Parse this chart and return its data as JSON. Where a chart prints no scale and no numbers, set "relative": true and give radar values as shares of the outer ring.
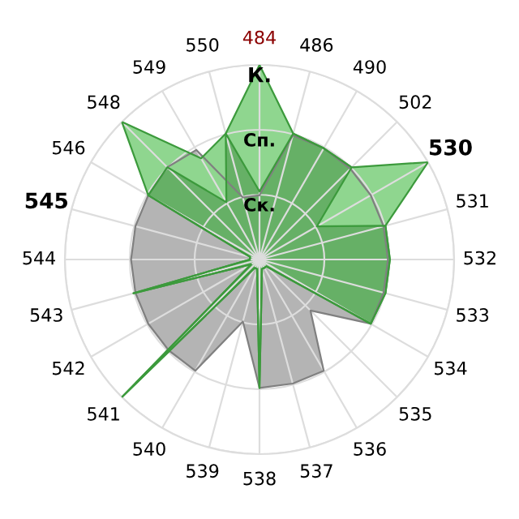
{
  "chart_data": {
    "type": "radar",
    "relative": true,
    "grid": true,
    "categories": [
      "484",
      "486",
      "490",
      "502",
      "530",
      "531",
      "532",
      "533",
      "534",
      "535",
      "536",
      "537",
      "538",
      "539",
      "540",
      "541",
      "542",
      "543",
      "544",
      "545",
      "546",
      "548",
      "549",
      "550"
    ],
    "annotations": [
      "Ск.",
      "Сп.",
      "К."
    ],
    "series": [
      {
        "color": "#b4b4b4",
        "values": [
          0.33,
          0.66,
          0.66,
          0.66,
          0.66,
          0.66,
          0.66,
          0.66,
          0.66,
          0.37,
          0.66,
          0.66,
          0.66,
          0.33,
          0.66,
          0.66,
          0.66,
          0.66,
          0.66,
          0.66,
          0.66,
          0.67,
          0.65,
          0.33
        ]
      },
      {
        "color": "#8fd68f",
        "values": [
          1.0,
          0.67,
          0.66,
          0.67,
          1.0,
          0.67,
          0.67,
          0.67,
          0.66,
          0.05,
          0.05,
          0.05,
          0.66,
          0.05,
          0.05,
          1.0,
          0.05,
          0.67,
          0.05,
          0.05,
          0.66,
          1.0,
          0.6,
          0.67
        ]
      },
      {
        "color": "#66b066",
        "values": [
          0.35,
          0.67,
          0.66,
          0.67,
          0.34,
          0.67,
          0.67,
          0.67,
          0.66,
          0.05,
          0.05,
          0.05,
          0.66,
          0.05,
          0.05,
          1.0,
          0.05,
          0.67,
          0.05,
          0.05,
          0.66,
          0.67,
          0.34,
          0.67
        ]
      }
    ]
  }
}
